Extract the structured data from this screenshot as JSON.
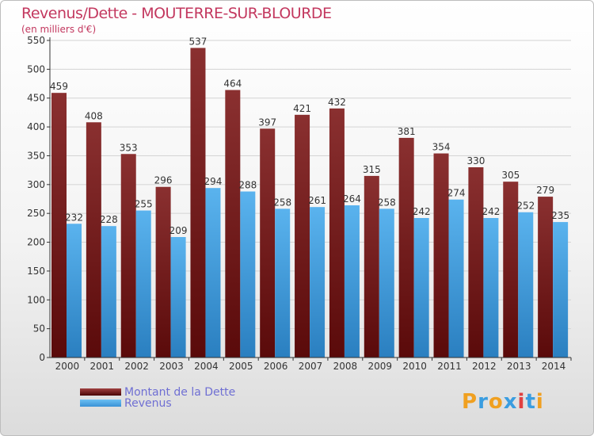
{
  "title": "Revenus/Dette - MOUTERRE-SUR-BLOURDE",
  "subtitle": "(en milliers d'€)",
  "legend": [
    {
      "label": "Montant de la Dette"
    },
    {
      "label": "Revenus"
    }
  ],
  "logo": {
    "text": "Proxiti"
  },
  "colors": {
    "debt_top": "#8a3030",
    "debt_bottom": "#5a0a0a",
    "rev_top": "#5ab3ee",
    "rev_bottom": "#2a7fc0",
    "title": "#c3385f",
    "legend_text": "#6f6fd3"
  },
  "chart_data": {
    "type": "bar",
    "title": "Revenus/Dette - MOUTERRE-SUR-BLOURDE",
    "ylabel": "(en milliers d'€)",
    "xlabel": "",
    "ylim": [
      0,
      550
    ],
    "ytick_step": 50,
    "grid": true,
    "legend_position": "bottom-left",
    "categories": [
      "2000",
      "2001",
      "2002",
      "2003",
      "2004",
      "2005",
      "2006",
      "2007",
      "2008",
      "2009",
      "2010",
      "2011",
      "2012",
      "2013",
      "2014"
    ],
    "series": [
      {
        "name": "Montant de la Dette",
        "values": [
          459,
          408,
          353,
          296,
          537,
          464,
          397,
          421,
          432,
          315,
          381,
          354,
          330,
          305,
          279
        ]
      },
      {
        "name": "Revenus",
        "values": [
          232,
          228,
          255,
          209,
          294,
          288,
          258,
          261,
          264,
          258,
          242,
          274,
          242,
          252,
          235
        ]
      }
    ]
  }
}
